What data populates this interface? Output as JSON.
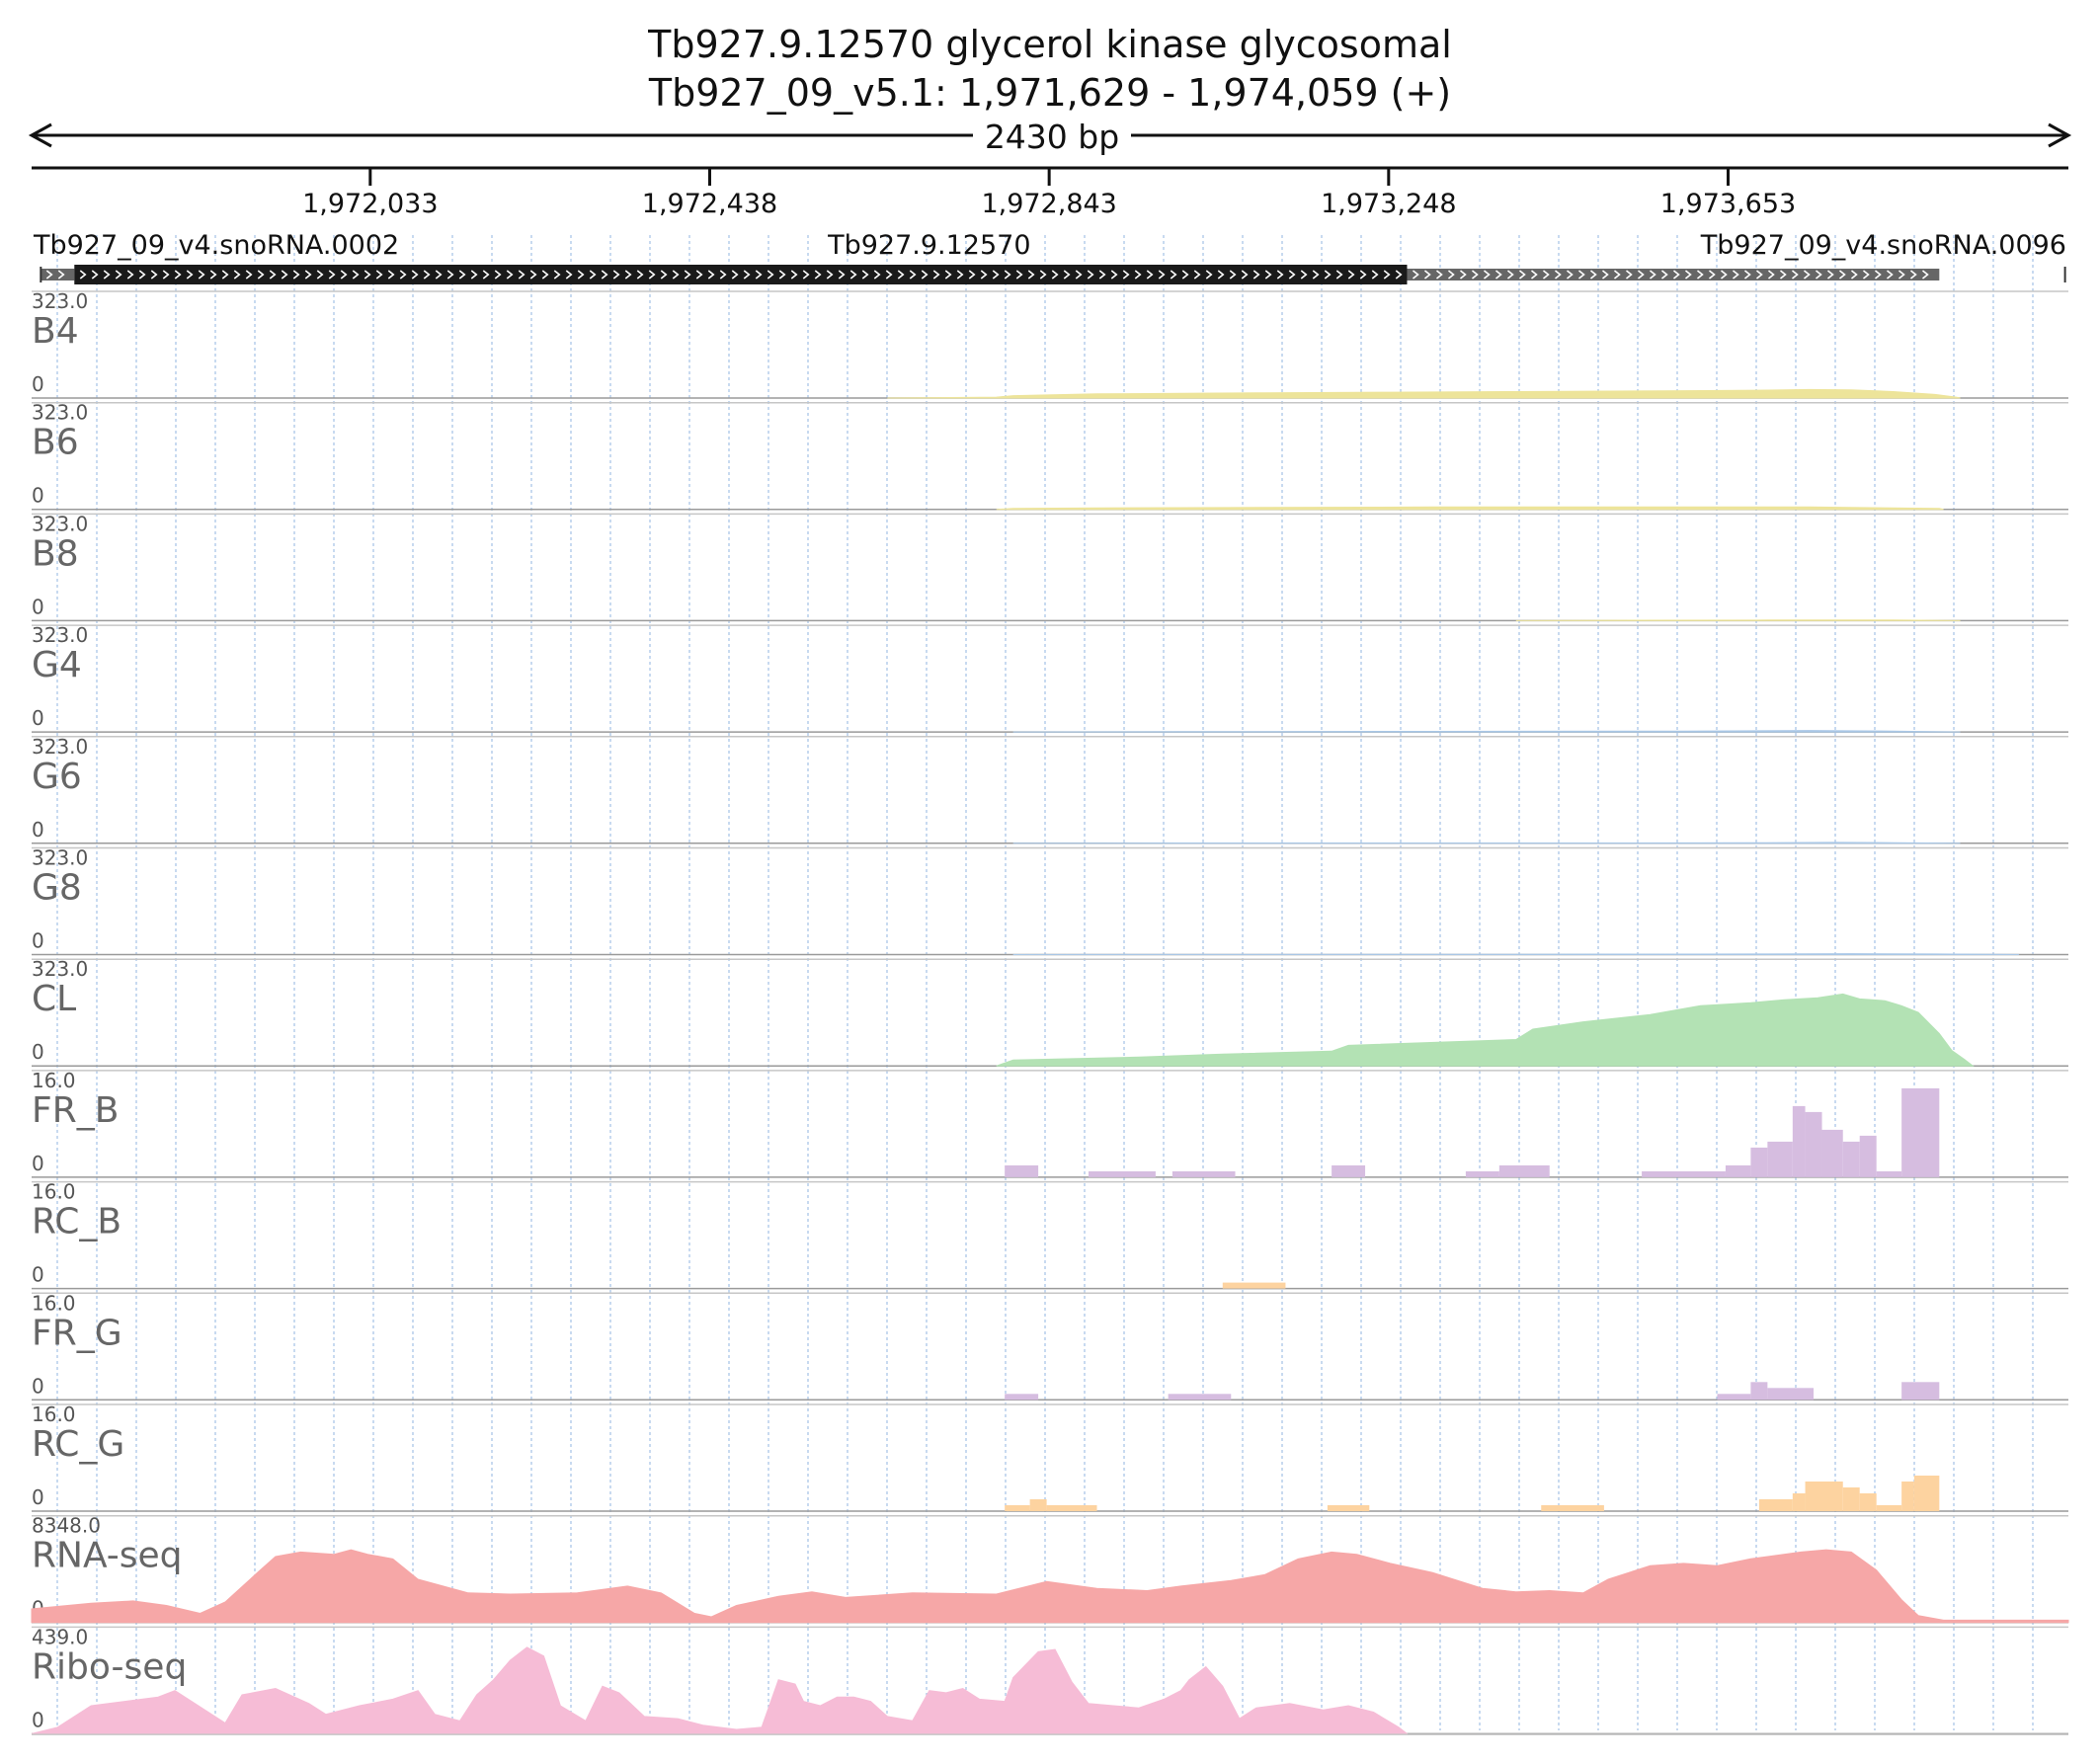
{
  "header": {
    "title": "Tb927.9.12570  glycerol kinase  glycosomal",
    "locus": "Tb927_09_v5.1: 1,971,629 - 1,974,059 (+)",
    "span": "2430 bp"
  },
  "colors": {
    "yellow": "#ede49a",
    "blue": "#a9c7e6",
    "green": "#b3e2b4",
    "purple": "#d6bde0",
    "orange": "#fdd3a0",
    "rna": "#f6a7a7",
    "ribo": "#f6bcd6",
    "gene": "#1a1a1a",
    "gene_utr": "#666666",
    "grid": "#a4c2e6"
  },
  "chart_data": {
    "type": "area",
    "x_unit": "bp",
    "xlim": [
      1971629,
      1974059
    ],
    "x_ticks": [
      1972033,
      1972438,
      1972843,
      1973248,
      1973653
    ],
    "x_tick_labels": [
      "1,972,033",
      "1,972,438",
      "1,972,843",
      "1,973,248",
      "1,973,653"
    ],
    "features": [
      {
        "label": "Tb927_09_v4.snoRNA.0002",
        "start": 1971640,
        "end": 1971680,
        "kind": "utr"
      },
      {
        "label": "Tb927.9.12570",
        "start": 1971680,
        "end": 1973270,
        "kind": "cds"
      },
      {
        "label": "",
        "start": 1973270,
        "end": 1973905,
        "kind": "utr"
      },
      {
        "label": "Tb927_09_v4.snoRNA.0096",
        "start": 1974055,
        "end": 1974059,
        "kind": "snoRNA"
      }
    ],
    "tracks": [
      {
        "name": "B4",
        "max": "323.0",
        "min": "0",
        "color": "yellow",
        "points": [
          [
            1972650,
            0
          ],
          [
            1972780,
            3
          ],
          [
            1972800,
            8
          ],
          [
            1972900,
            14
          ],
          [
            1973000,
            16
          ],
          [
            1973100,
            18
          ],
          [
            1973250,
            20
          ],
          [
            1973400,
            22
          ],
          [
            1973600,
            25
          ],
          [
            1973700,
            27
          ],
          [
            1973750,
            29
          ],
          [
            1973800,
            28
          ],
          [
            1973850,
            22
          ],
          [
            1973900,
            12
          ],
          [
            1973925,
            3
          ],
          [
            1973930,
            0
          ]
        ]
      },
      {
        "name": "B6",
        "max": "323.0",
        "min": "0",
        "color": "yellow",
        "points": [
          [
            1972780,
            0
          ],
          [
            1972800,
            3
          ],
          [
            1972900,
            5
          ],
          [
            1973050,
            6
          ],
          [
            1973300,
            8
          ],
          [
            1973600,
            8
          ],
          [
            1973750,
            8
          ],
          [
            1973850,
            5
          ],
          [
            1973905,
            3
          ],
          [
            1973910,
            0
          ]
        ]
      },
      {
        "name": "B8",
        "max": "323.0",
        "min": "0",
        "color": "yellow",
        "points": [
          [
            1973400,
            0
          ],
          [
            1973500,
            1
          ],
          [
            1973700,
            2
          ],
          [
            1973850,
            2
          ],
          [
            1973930,
            0
          ]
        ]
      },
      {
        "name": "G4",
        "max": "323.0",
        "min": "0",
        "color": "blue",
        "points": [
          [
            1972800,
            0
          ],
          [
            1973000,
            1
          ],
          [
            1973300,
            2
          ],
          [
            1973600,
            3
          ],
          [
            1973750,
            5
          ],
          [
            1973850,
            3
          ],
          [
            1973930,
            0
          ]
        ]
      },
      {
        "name": "G6",
        "max": "323.0",
        "min": "0",
        "color": "blue",
        "points": [
          [
            1972800,
            0
          ],
          [
            1973000,
            1
          ],
          [
            1973500,
            1
          ],
          [
            1973700,
            2
          ],
          [
            1973780,
            3
          ],
          [
            1973850,
            2
          ],
          [
            1973930,
            0
          ]
        ]
      },
      {
        "name": "G8",
        "max": "323.0",
        "min": "0",
        "color": "blue",
        "points": [
          [
            1972800,
            0
          ],
          [
            1973400,
            1
          ],
          [
            1973700,
            2
          ],
          [
            1973800,
            3
          ],
          [
            1973900,
            2
          ],
          [
            1974000,
            0
          ]
        ]
      },
      {
        "name": "CL",
        "max": "323.0",
        "min": "0",
        "color": "green",
        "points": [
          [
            1972780,
            0
          ],
          [
            1972800,
            20
          ],
          [
            1972950,
            30
          ],
          [
            1973050,
            40
          ],
          [
            1973180,
            50
          ],
          [
            1973200,
            70
          ],
          [
            1973400,
            90
          ],
          [
            1973420,
            125
          ],
          [
            1973480,
            150
          ],
          [
            1973560,
            175
          ],
          [
            1973620,
            205
          ],
          [
            1973680,
            215
          ],
          [
            1973720,
            225
          ],
          [
            1973760,
            232
          ],
          [
            1973790,
            245
          ],
          [
            1973810,
            228
          ],
          [
            1973840,
            222
          ],
          [
            1973860,
            205
          ],
          [
            1973880,
            182
          ],
          [
            1973905,
            110
          ],
          [
            1973920,
            52
          ],
          [
            1973935,
            22
          ],
          [
            1973945,
            0
          ]
        ]
      },
      {
        "name": "FR_B",
        "max": "16.0",
        "min": "0",
        "color": "purple",
        "bars": [
          [
            1972790,
            1972830,
            2
          ],
          [
            1972890,
            1972970,
            1
          ],
          [
            1972990,
            1973065,
            1
          ],
          [
            1973180,
            1973220,
            2
          ],
          [
            1973340,
            1973380,
            1
          ],
          [
            1973380,
            1973440,
            2
          ],
          [
            1973550,
            1973650,
            1
          ],
          [
            1973650,
            1973680,
            2
          ],
          [
            1973680,
            1973700,
            5
          ],
          [
            1973700,
            1973730,
            6
          ],
          [
            1973730,
            1973745,
            12
          ],
          [
            1973745,
            1973765,
            11
          ],
          [
            1973765,
            1973790,
            8
          ],
          [
            1973790,
            1973810,
            6
          ],
          [
            1973810,
            1973830,
            7
          ],
          [
            1973830,
            1973860,
            1
          ],
          [
            1973860,
            1973905,
            15
          ]
        ]
      },
      {
        "name": "RC_B",
        "max": "16.0",
        "min": "0",
        "color": "orange",
        "bars": [
          [
            1973050,
            1973125,
            1
          ]
        ]
      },
      {
        "name": "FR_G",
        "max": "16.0",
        "min": "0",
        "color": "purple",
        "bars": [
          [
            1972790,
            1972830,
            1
          ],
          [
            1972985,
            1973060,
            1
          ],
          [
            1973640,
            1973680,
            1
          ],
          [
            1973680,
            1973700,
            3
          ],
          [
            1973700,
            1973755,
            2
          ],
          [
            1973860,
            1973905,
            3
          ]
        ]
      },
      {
        "name": "RC_G",
        "max": "16.0",
        "min": "0",
        "color": "orange",
        "bars": [
          [
            1972790,
            1972820,
            1
          ],
          [
            1972820,
            1972840,
            2
          ],
          [
            1972840,
            1972900,
            1
          ],
          [
            1973175,
            1973225,
            1
          ],
          [
            1973430,
            1973505,
            1
          ],
          [
            1973690,
            1973730,
            2
          ],
          [
            1973730,
            1973745,
            3
          ],
          [
            1973745,
            1973790,
            5
          ],
          [
            1973790,
            1973810,
            4
          ],
          [
            1973810,
            1973830,
            3
          ],
          [
            1973830,
            1973860,
            1
          ],
          [
            1973860,
            1973875,
            5
          ],
          [
            1973875,
            1973905,
            6
          ]
        ]
      },
      {
        "name": "RNA-seq",
        "max": "8348.0",
        "min": "0",
        "color": "rna",
        "points": [
          [
            1971629,
            1200
          ],
          [
            1971700,
            1700
          ],
          [
            1971750,
            1900
          ],
          [
            1971790,
            1500
          ],
          [
            1971830,
            800
          ],
          [
            1971860,
            1800
          ],
          [
            1971900,
            4500
          ],
          [
            1971920,
            5800
          ],
          [
            1971950,
            6200
          ],
          [
            1971990,
            6000
          ],
          [
            1972010,
            6400
          ],
          [
            1972030,
            6000
          ],
          [
            1972060,
            5600
          ],
          [
            1972090,
            3800
          ],
          [
            1972150,
            2600
          ],
          [
            1972200,
            2500
          ],
          [
            1972280,
            2600
          ],
          [
            1972340,
            3200
          ],
          [
            1972380,
            2600
          ],
          [
            1972420,
            800
          ],
          [
            1972440,
            500
          ],
          [
            1972470,
            1500
          ],
          [
            1972520,
            2300
          ],
          [
            1972560,
            2700
          ],
          [
            1972600,
            2200
          ],
          [
            1972680,
            2600
          ],
          [
            1972780,
            2500
          ],
          [
            1972840,
            3600
          ],
          [
            1972900,
            3000
          ],
          [
            1972960,
            2800
          ],
          [
            1973000,
            3200
          ],
          [
            1973060,
            3700
          ],
          [
            1973100,
            4200
          ],
          [
            1973140,
            5600
          ],
          [
            1973180,
            6200
          ],
          [
            1973210,
            6000
          ],
          [
            1973250,
            5200
          ],
          [
            1973300,
            4400
          ],
          [
            1973360,
            3000
          ],
          [
            1973400,
            2700
          ],
          [
            1973440,
            2800
          ],
          [
            1973480,
            2600
          ],
          [
            1973510,
            3800
          ],
          [
            1973560,
            5000
          ],
          [
            1973600,
            5200
          ],
          [
            1973640,
            5000
          ],
          [
            1973680,
            5600
          ],
          [
            1973700,
            5800
          ],
          [
            1973740,
            6200
          ],
          [
            1973770,
            6400
          ],
          [
            1973800,
            6200
          ],
          [
            1973830,
            4600
          ],
          [
            1973860,
            2000
          ],
          [
            1973880,
            600
          ],
          [
            1973910,
            200
          ],
          [
            1974059,
            200
          ]
        ]
      },
      {
        "name": "Ribo-seq",
        "max": "439.0",
        "min": "0",
        "color": "ribo",
        "points": [
          [
            1971629,
            0
          ],
          [
            1971660,
            30
          ],
          [
            1971700,
            130
          ],
          [
            1971740,
            150
          ],
          [
            1971780,
            170
          ],
          [
            1971800,
            200
          ],
          [
            1971840,
            100
          ],
          [
            1971860,
            50
          ],
          [
            1971880,
            180
          ],
          [
            1971920,
            210
          ],
          [
            1971960,
            140
          ],
          [
            1971980,
            90
          ],
          [
            1972020,
            130
          ],
          [
            1972060,
            160
          ],
          [
            1972090,
            200
          ],
          [
            1972110,
            90
          ],
          [
            1972140,
            60
          ],
          [
            1972160,
            180
          ],
          [
            1972180,
            250
          ],
          [
            1972200,
            340
          ],
          [
            1972220,
            400
          ],
          [
            1972240,
            360
          ],
          [
            1972260,
            130
          ],
          [
            1972290,
            60
          ],
          [
            1972310,
            220
          ],
          [
            1972330,
            190
          ],
          [
            1972360,
            80
          ],
          [
            1972400,
            70
          ],
          [
            1972430,
            40
          ],
          [
            1972470,
            20
          ],
          [
            1972500,
            30
          ],
          [
            1972520,
            250
          ],
          [
            1972540,
            230
          ],
          [
            1972550,
            150
          ],
          [
            1972570,
            130
          ],
          [
            1972590,
            170
          ],
          [
            1972610,
            170
          ],
          [
            1972630,
            150
          ],
          [
            1972650,
            80
          ],
          [
            1972680,
            60
          ],
          [
            1972700,
            200
          ],
          [
            1972720,
            190
          ],
          [
            1972740,
            210
          ],
          [
            1972760,
            160
          ],
          [
            1972790,
            150
          ],
          [
            1972800,
            260
          ],
          [
            1972830,
            380
          ],
          [
            1972850,
            390
          ],
          [
            1972870,
            240
          ],
          [
            1972890,
            140
          ],
          [
            1972920,
            130
          ],
          [
            1972950,
            120
          ],
          [
            1972980,
            160
          ],
          [
            1973000,
            200
          ],
          [
            1973010,
            250
          ],
          [
            1973030,
            310
          ],
          [
            1973050,
            220
          ],
          [
            1973070,
            70
          ],
          [
            1973090,
            120
          ],
          [
            1973130,
            140
          ],
          [
            1973170,
            110
          ],
          [
            1973200,
            130
          ],
          [
            1973230,
            100
          ],
          [
            1973260,
            30
          ],
          [
            1973270,
            0
          ]
        ]
      }
    ]
  }
}
